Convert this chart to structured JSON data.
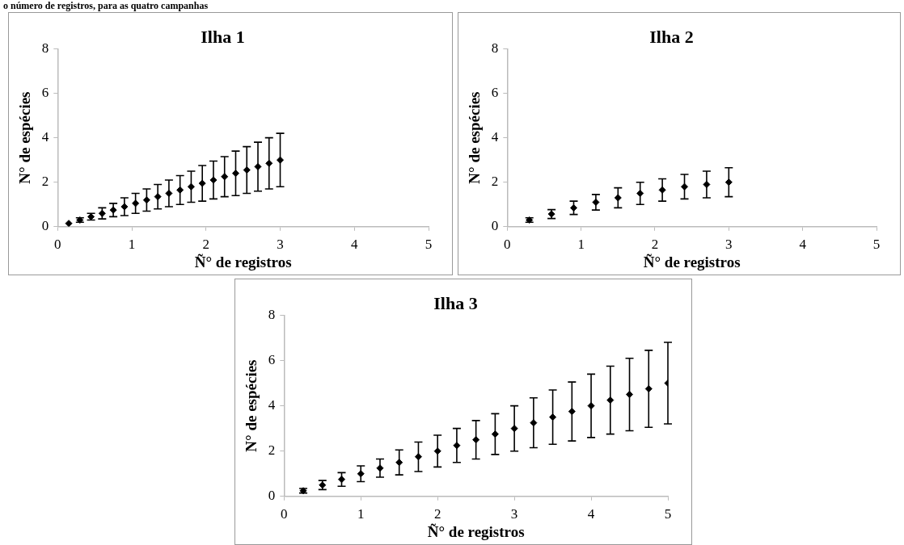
{
  "chart_data": [
    {
      "type": "scatter",
      "title": "Ilha 1",
      "xlabel": "Ñ° de registros",
      "ylabel": "N° de espécies",
      "annotations": [
        "o número de registros, para as quatro campanhas"
      ],
      "color": "#000000",
      "marker": "diamond",
      "grid": false,
      "xlim": [
        0,
        5
      ],
      "ylim": [
        0,
        8
      ],
      "xticks": [
        0,
        1,
        2,
        3,
        4,
        5
      ],
      "yticks": [
        0,
        2,
        4,
        6,
        8
      ],
      "x": [
        0.15,
        0.3,
        0.45,
        0.6,
        0.75,
        0.9,
        1.05,
        1.2,
        1.35,
        1.5,
        1.65,
        1.8,
        1.95,
        2.1,
        2.25,
        2.4,
        2.55,
        2.7,
        2.85,
        3.0
      ],
      "values": [
        0.15,
        0.3,
        0.45,
        0.6,
        0.75,
        0.9,
        1.05,
        1.2,
        1.35,
        1.5,
        1.65,
        1.8,
        1.95,
        2.1,
        2.25,
        2.4,
        2.55,
        2.7,
        2.85,
        3.0
      ],
      "errors": [
        null,
        0.1,
        0.15,
        0.25,
        0.3,
        0.4,
        0.45,
        0.5,
        0.55,
        0.6,
        0.65,
        0.7,
        0.8,
        0.85,
        0.9,
        1.0,
        1.05,
        1.1,
        1.15,
        1.2
      ]
    },
    {
      "type": "scatter",
      "title": "Ilha 2",
      "xlabel": "Ñ° de registros",
      "ylabel": "N° de espécies",
      "color": "#000000",
      "marker": "diamond",
      "grid": false,
      "xlim": [
        0,
        5
      ],
      "ylim": [
        0,
        8
      ],
      "xticks": [
        0,
        1,
        2,
        3,
        4,
        5
      ],
      "yticks": [
        0,
        2,
        4,
        6,
        8
      ],
      "x": [
        0.3,
        0.6,
        0.9,
        1.2,
        1.5,
        1.8,
        2.1,
        2.4,
        2.7,
        3.0
      ],
      "values": [
        0.3,
        0.57,
        0.85,
        1.1,
        1.3,
        1.5,
        1.65,
        1.8,
        1.9,
        2.0
      ],
      "errors": [
        0.1,
        0.2,
        0.3,
        0.35,
        0.45,
        0.5,
        0.5,
        0.55,
        0.6,
        0.65
      ]
    },
    {
      "type": "scatter",
      "title": "Ilha 3",
      "xlabel": "Ñ° de registros",
      "ylabel": "N° de espécies",
      "color": "#000000",
      "marker": "diamond",
      "grid": false,
      "xlim": [
        0,
        5
      ],
      "ylim": [
        0,
        8
      ],
      "xticks": [
        0,
        1,
        2,
        3,
        4,
        5
      ],
      "yticks": [
        0,
        2,
        4,
        6,
        8
      ],
      "x": [
        0.25,
        0.5,
        0.75,
        1.0,
        1.25,
        1.5,
        1.75,
        2.0,
        2.25,
        2.5,
        2.75,
        3.0,
        3.25,
        3.5,
        3.75,
        4.0,
        4.25,
        4.5,
        4.75,
        5.0
      ],
      "values": [
        0.25,
        0.5,
        0.75,
        1.0,
        1.25,
        1.5,
        1.75,
        2.0,
        2.25,
        2.5,
        2.75,
        3.0,
        3.25,
        3.5,
        3.75,
        4.0,
        4.25,
        4.5,
        4.75,
        5.0
      ],
      "errors": [
        0.1,
        0.2,
        0.3,
        0.35,
        0.4,
        0.55,
        0.65,
        0.7,
        0.75,
        0.85,
        0.9,
        1.0,
        1.1,
        1.2,
        1.3,
        1.4,
        1.5,
        1.6,
        1.7,
        1.8
      ]
    }
  ]
}
